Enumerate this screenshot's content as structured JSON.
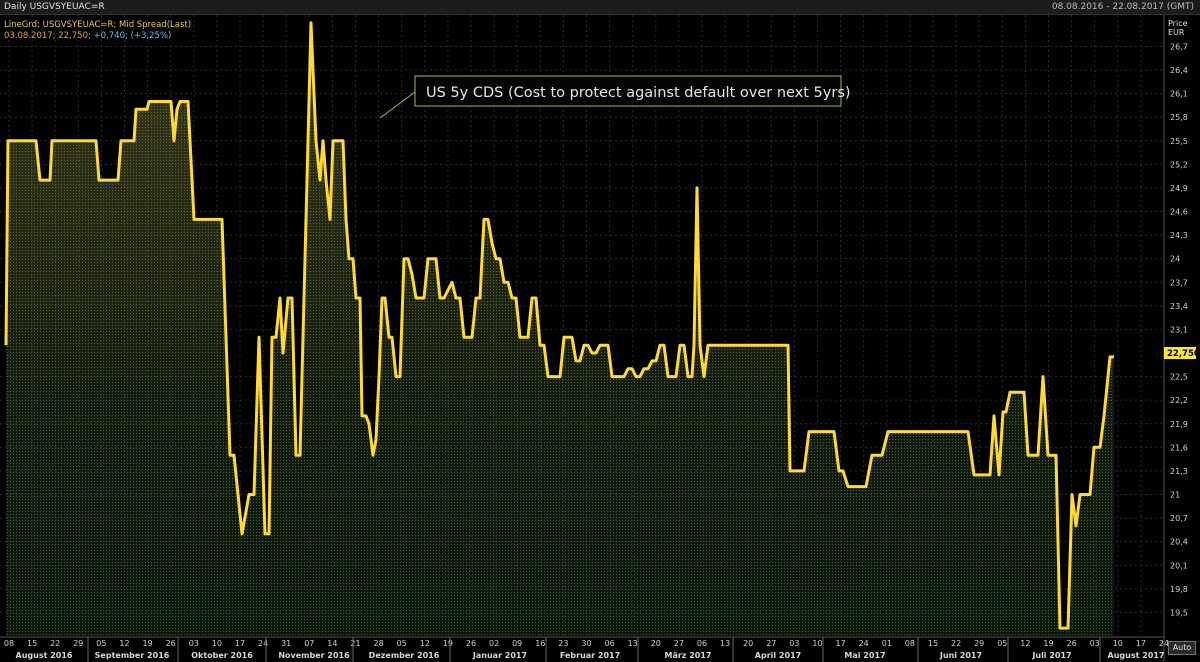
{
  "header": {
    "title": "Daily USGVSYEUAC=R",
    "range": "08.08.2016 - 22.08.2017 (GMT)"
  },
  "legend": {
    "line1": "LineGrd; USGVSYEUAC=R; Mid Spread(Last)",
    "date": "03.08.2017;",
    "value": "22,750;",
    "change": "+0,740;",
    "pct": "(+3,25%)"
  },
  "price_label": "Price",
  "unit": "EUR",
  "last_value_label": "22,750",
  "annotation": "US 5y CDS (Cost to protect against default over next 5yrs)",
  "auto_label": "Auto",
  "colors": {
    "line": "#ffd83a",
    "annotation_border": "#8fbf5a",
    "annotation_bg": "#050505",
    "last_box": "#ffe53a"
  },
  "chart_data": {
    "type": "line",
    "title": "",
    "ylim": [
      19.2,
      27.1
    ],
    "y_ticks": [
      19.5,
      19.8,
      20.1,
      20.4,
      20.7,
      21,
      21.3,
      21.6,
      21.9,
      22.2,
      22.5,
      23.1,
      23.4,
      23.7,
      24,
      24.3,
      24.6,
      24.9,
      25.2,
      25.5,
      25.8,
      26.1,
      26.4,
      26.7
    ],
    "y_tick_labels": [
      "19,5",
      "19,8",
      "20,1",
      "20,4",
      "20,7",
      "21",
      "21,3",
      "21,6",
      "21,9",
      "22,2",
      "22,5",
      "23,1",
      "23,4",
      "23,7",
      "24",
      "24,3",
      "24,6",
      "24,9",
      "25,2",
      "25,5",
      "25,8",
      "26,1",
      "26,4",
      "26,7"
    ],
    "x_day_ticks": [
      "08",
      "15",
      "22",
      "29",
      "05",
      "12",
      "19",
      "26",
      "03",
      "10",
      "17",
      "24",
      "31",
      "07",
      "14",
      "21",
      "28",
      "05",
      "12",
      "19",
      "26",
      "02",
      "09",
      "16",
      "23",
      "30",
      "06",
      "13",
      "20",
      "27",
      "06",
      "13",
      "20",
      "27",
      "03",
      "10",
      "17",
      "24",
      "01",
      "08",
      "15",
      "22",
      "29",
      "05",
      "12",
      "19",
      "26",
      "03",
      "10",
      "17",
      "24",
      "31",
      "07",
      "14",
      "21"
    ],
    "months": [
      "August 2016",
      "September 2016",
      "Oktober 2016",
      "November 2016",
      "Dezember 2016",
      "Januar 2017",
      "Februar 2017",
      "März 2017",
      "April 2017",
      "Mai 2017",
      "Juni 2017",
      "Juli 2017",
      "August 2017"
    ],
    "grid": true,
    "series": [
      {
        "values": [
          [
            0,
            22.9
          ],
          [
            2,
            25.5
          ],
          [
            30,
            25.5
          ],
          [
            34,
            25.0
          ],
          [
            44,
            25.0
          ],
          [
            46,
            25.5
          ],
          [
            90,
            25.5
          ],
          [
            93,
            25.0
          ],
          [
            112,
            25.0
          ],
          [
            115,
            25.5
          ],
          [
            128,
            25.5
          ],
          [
            130,
            25.9
          ],
          [
            141,
            25.9
          ],
          [
            143,
            26.0
          ],
          [
            165,
            26.0
          ],
          [
            168,
            25.5
          ],
          [
            171,
            25.9
          ],
          [
            174,
            26.0
          ],
          [
            182,
            26.0
          ],
          [
            188,
            24.5
          ],
          [
            216,
            24.5
          ],
          [
            224,
            21.5
          ],
          [
            228,
            21.5
          ],
          [
            232,
            21.0
          ],
          [
            236,
            20.5
          ],
          [
            243,
            21.0
          ],
          [
            248,
            21.0
          ],
          [
            253,
            23.0
          ],
          [
            259,
            20.5
          ],
          [
            263,
            20.5
          ],
          [
            266,
            23.0
          ],
          [
            270,
            23.0
          ],
          [
            274,
            23.5
          ],
          [
            277,
            22.8
          ],
          [
            282,
            23.5
          ],
          [
            286,
            23.5
          ],
          [
            290,
            21.5
          ],
          [
            294,
            21.5
          ],
          [
            298,
            23.5
          ],
          [
            305,
            27.0
          ],
          [
            310,
            25.5
          ],
          [
            314,
            25.0
          ],
          [
            317,
            25.5
          ],
          [
            320,
            25.0
          ],
          [
            324,
            24.5
          ],
          [
            327,
            25.5
          ],
          [
            337,
            25.5
          ],
          [
            340,
            24.5
          ],
          [
            343,
            24.0
          ],
          [
            347,
            24.0
          ],
          [
            350,
            23.5
          ],
          [
            354,
            23.5
          ],
          [
            356,
            22.0
          ],
          [
            360,
            22.0
          ],
          [
            363,
            21.9
          ],
          [
            367,
            21.5
          ],
          [
            370,
            21.7
          ],
          [
            373,
            22.5
          ],
          [
            376,
            23.5
          ],
          [
            379,
            23.5
          ],
          [
            383,
            23.0
          ],
          [
            386,
            23.0
          ],
          [
            390,
            22.5
          ],
          [
            394,
            22.5
          ],
          [
            398,
            24.0
          ],
          [
            402,
            24.0
          ],
          [
            406,
            23.8
          ],
          [
            410,
            23.5
          ],
          [
            414,
            23.5
          ],
          [
            418,
            23.5
          ],
          [
            422,
            24.0
          ],
          [
            426,
            24.0
          ],
          [
            430,
            24.0
          ],
          [
            434,
            23.5
          ],
          [
            438,
            23.5
          ],
          [
            442,
            23.6
          ],
          [
            446,
            23.7
          ],
          [
            450,
            23.5
          ],
          [
            454,
            23.5
          ],
          [
            458,
            23.0
          ],
          [
            462,
            23.0
          ],
          [
            466,
            23.0
          ],
          [
            470,
            23.5
          ],
          [
            474,
            23.5
          ],
          [
            478,
            24.5
          ],
          [
            482,
            24.5
          ],
          [
            486,
            24.2
          ],
          [
            490,
            24.0
          ],
          [
            494,
            24.0
          ],
          [
            498,
            23.7
          ],
          [
            502,
            23.7
          ],
          [
            506,
            23.5
          ],
          [
            510,
            23.5
          ],
          [
            514,
            23.0
          ],
          [
            518,
            23.0
          ],
          [
            522,
            23.0
          ],
          [
            526,
            23.5
          ],
          [
            530,
            23.5
          ],
          [
            534,
            22.9
          ],
          [
            538,
            22.9
          ],
          [
            542,
            22.5
          ],
          [
            546,
            22.5
          ],
          [
            550,
            22.5
          ],
          [
            554,
            22.5
          ],
          [
            558,
            23.0
          ],
          [
            562,
            23.0
          ],
          [
            566,
            23.0
          ],
          [
            570,
            22.7
          ],
          [
            574,
            22.7
          ],
          [
            578,
            22.9
          ],
          [
            582,
            22.9
          ],
          [
            586,
            22.8
          ],
          [
            590,
            22.8
          ],
          [
            594,
            22.9
          ],
          [
            598,
            22.9
          ],
          [
            602,
            22.9
          ],
          [
            606,
            22.5
          ],
          [
            610,
            22.5
          ],
          [
            614,
            22.5
          ],
          [
            618,
            22.5
          ],
          [
            622,
            22.6
          ],
          [
            626,
            22.6
          ],
          [
            630,
            22.5
          ],
          [
            634,
            22.5
          ],
          [
            638,
            22.6
          ],
          [
            642,
            22.6
          ],
          [
            646,
            22.7
          ],
          [
            650,
            22.7
          ],
          [
            654,
            22.9
          ],
          [
            658,
            22.9
          ],
          [
            662,
            22.5
          ],
          [
            666,
            22.5
          ],
          [
            670,
            22.5
          ],
          [
            674,
            22.9
          ],
          [
            678,
            22.9
          ],
          [
            682,
            22.5
          ],
          [
            686,
            22.5
          ],
          [
            688,
            22.9
          ],
          [
            691,
            24.9
          ],
          [
            694,
            22.9
          ],
          [
            698,
            22.5
          ],
          [
            702,
            22.9
          ],
          [
            706,
            22.9
          ],
          [
            710,
            22.9
          ],
          [
            714,
            22.9
          ],
          [
            718,
            22.9
          ],
          [
            722,
            22.9
          ],
          [
            726,
            22.9
          ],
          [
            730,
            22.9
          ],
          [
            734,
            22.9
          ],
          [
            738,
            22.9
          ],
          [
            742,
            22.9
          ],
          [
            746,
            22.9
          ],
          [
            750,
            22.9
          ],
          [
            754,
            22.9
          ],
          [
            758,
            22.9
          ],
          [
            762,
            22.9
          ],
          [
            766,
            22.9
          ],
          [
            770,
            22.9
          ],
          [
            774,
            22.9
          ],
          [
            778,
            22.9
          ],
          [
            782,
            22.9
          ],
          [
            784,
            21.3
          ],
          [
            798,
            21.3
          ],
          [
            803,
            21.8
          ],
          [
            828,
            21.8
          ],
          [
            833,
            21.3
          ],
          [
            837,
            21.3
          ],
          [
            842,
            21.1
          ],
          [
            860,
            21.1
          ],
          [
            866,
            21.5
          ],
          [
            876,
            21.5
          ],
          [
            882,
            21.8
          ],
          [
            962,
            21.8
          ],
          [
            968,
            21.25
          ],
          [
            984,
            21.25
          ],
          [
            988,
            22.0
          ],
          [
            993,
            21.25
          ],
          [
            997,
            22.05
          ],
          [
            1000,
            22.05
          ],
          [
            1004,
            22.3
          ],
          [
            1018,
            22.3
          ],
          [
            1022,
            21.5
          ],
          [
            1032,
            21.5
          ],
          [
            1037,
            22.5
          ],
          [
            1042,
            21.5
          ],
          [
            1050,
            21.5
          ],
          [
            1054,
            19.3
          ],
          [
            1062,
            19.3
          ],
          [
            1066,
            21.0
          ],
          [
            1070,
            20.6
          ],
          [
            1074,
            21.0
          ],
          [
            1084,
            21.0
          ],
          [
            1088,
            21.6
          ],
          [
            1094,
            21.6
          ],
          [
            1098,
            22.0
          ],
          [
            1104,
            22.75
          ],
          [
            1108,
            22.75
          ]
        ]
      }
    ]
  }
}
